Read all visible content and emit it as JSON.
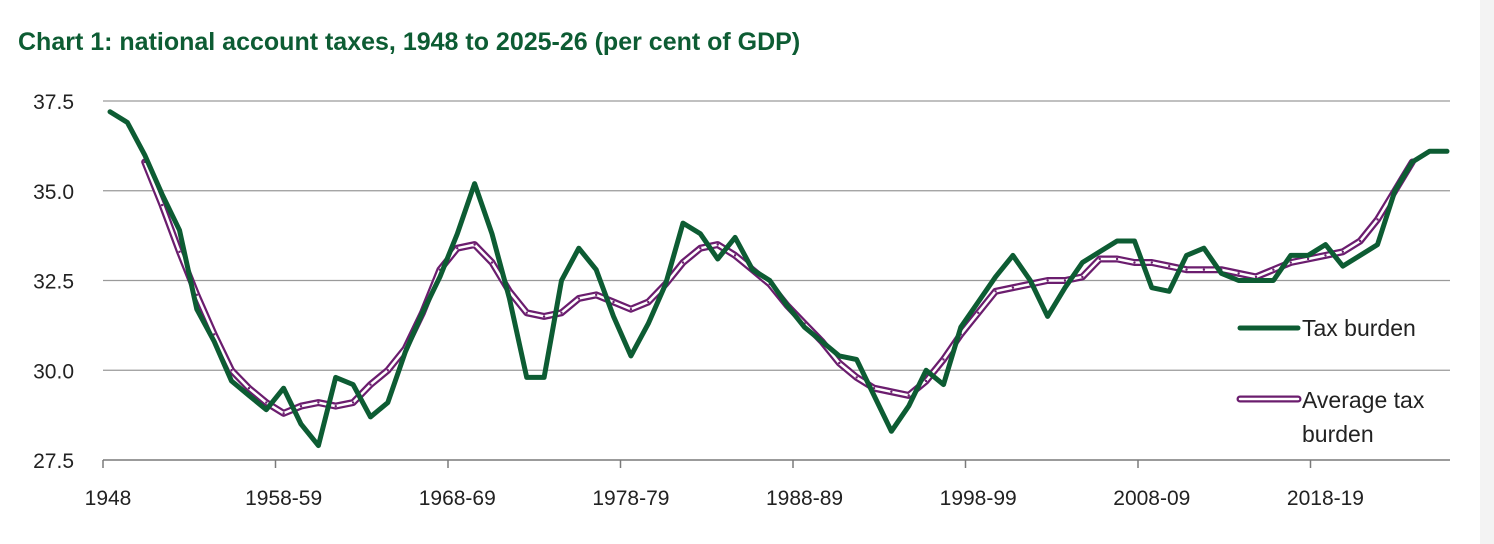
{
  "chart_data": {
    "type": "line",
    "title": "Chart 1: national account taxes, 1948 to 2025-26 (per cent of GDP)",
    "xlabel": "",
    "ylabel": "",
    "ylim": [
      27.5,
      37.5
    ],
    "yticks": [
      "27.5",
      "30.0",
      "32.5",
      "35.0",
      "37.5"
    ],
    "ytick_values": [
      27.5,
      30.0,
      32.5,
      35.0,
      37.5
    ],
    "xtick_labels": [
      "1948",
      "1958-59",
      "1968-69",
      "1978-79",
      "1988-89",
      "1998-99",
      "2008-09",
      "2018-19"
    ],
    "xtick_indices": [
      0,
      10,
      20,
      30,
      40,
      50,
      60,
      70
    ],
    "n_years": 78,
    "grid": "horizontal",
    "legend_position": "right",
    "series": [
      {
        "name": "Tax burden",
        "color": "#0d5c33",
        "start_index": 0,
        "values": [
          37.2,
          36.9,
          36.0,
          34.9,
          33.9,
          31.7,
          30.8,
          29.7,
          29.3,
          28.9,
          29.5,
          28.5,
          27.9,
          29.8,
          29.6,
          28.7,
          29.1,
          30.5,
          31.6,
          32.6,
          33.8,
          35.2,
          33.8,
          32.0,
          29.8,
          29.8,
          32.5,
          33.4,
          32.8,
          31.5,
          30.4,
          31.3,
          32.4,
          34.1,
          33.8,
          33.1,
          33.7,
          32.8,
          32.5,
          31.8,
          31.2,
          30.8,
          30.4,
          30.3,
          29.3,
          28.3,
          29.0,
          30.0,
          29.6,
          31.2,
          31.9,
          32.6,
          33.2,
          32.5,
          31.5,
          32.3,
          33.0,
          33.3,
          33.6,
          33.6,
          32.3,
          32.2,
          33.2,
          33.4,
          32.7,
          32.5,
          32.5,
          32.5,
          33.2,
          33.2,
          33.5,
          32.9,
          33.2,
          33.5,
          35.0,
          35.8,
          36.1,
          36.1
        ]
      },
      {
        "name": "Average tax burden",
        "color": "#6b1d6e",
        "start_index": 2,
        "values": [
          35.8,
          34.6,
          33.3,
          32.1,
          31.0,
          30.0,
          29.5,
          29.1,
          28.8,
          29.0,
          29.1,
          29.0,
          29.1,
          29.6,
          30.0,
          30.6,
          31.6,
          32.8,
          33.4,
          33.5,
          33.0,
          32.2,
          31.6,
          31.5,
          31.6,
          32.0,
          32.1,
          31.9,
          31.7,
          31.9,
          32.4,
          33.0,
          33.4,
          33.5,
          33.2,
          32.8,
          32.4,
          31.8,
          31.3,
          30.8,
          30.2,
          29.8,
          29.5,
          29.4,
          29.3,
          29.7,
          30.3,
          31.0,
          31.6,
          32.2,
          32.3,
          32.4,
          32.5,
          32.5,
          32.6,
          33.1,
          33.1,
          33.0,
          33.0,
          32.9,
          32.8,
          32.8,
          32.8,
          32.7,
          32.6,
          32.8,
          33.0,
          33.1,
          33.2,
          33.3,
          33.6,
          34.2,
          35.0,
          35.8
        ]
      }
    ]
  }
}
